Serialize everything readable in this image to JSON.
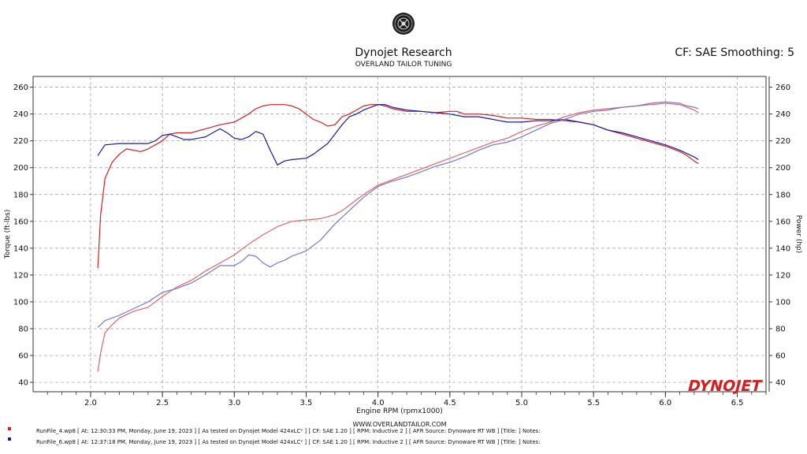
{
  "header": {
    "title": "Dynojet Research",
    "subtitle": "OVERLAND TAILOR TUNING",
    "correction": "CF: SAE Smoothing: 5"
  },
  "chart_data": {
    "type": "line",
    "xlabel": "Engine RPM (rpmx1000)",
    "ylabel_left": "Torque (ft-lbs)",
    "ylabel_right": "Power (hp)",
    "xlim": [
      1.6,
      6.7
    ],
    "ylim": [
      33,
      268
    ],
    "x_ticks": [
      "2.0",
      "2.5",
      "3.0",
      "3.5",
      "4.0",
      "4.5",
      "5.0",
      "5.5",
      "6.0",
      "6.5"
    ],
    "y_ticks": [
      "40",
      "60",
      "80",
      "100",
      "120",
      "140",
      "160",
      "180",
      "200",
      "220",
      "240",
      "260"
    ],
    "grid": true,
    "colors": {
      "run1_torque": "#d42020",
      "run1_power": "#e06666",
      "run2_torque": "#1a1a9c",
      "run2_power": "#7777cc"
    },
    "series": [
      {
        "key": "run1_torque",
        "x": [
          2.05,
          2.07,
          2.1,
          2.15,
          2.2,
          2.25,
          2.3,
          2.35,
          2.4,
          2.5,
          2.55,
          2.6,
          2.7,
          2.8,
          2.9,
          3.0,
          3.05,
          3.1,
          3.15,
          3.2,
          3.25,
          3.3,
          3.35,
          3.4,
          3.45,
          3.5,
          3.55,
          3.6,
          3.65,
          3.7,
          3.75,
          3.8,
          3.85,
          3.9,
          3.95,
          4.0,
          4.05,
          4.1,
          4.2,
          4.3,
          4.4,
          4.5,
          4.55,
          4.6,
          4.7,
          4.8,
          4.9,
          5.0,
          5.1,
          5.2,
          5.3,
          5.4,
          5.5,
          5.6,
          5.7,
          5.8,
          5.9,
          6.0,
          6.1,
          6.15,
          6.2,
          6.23
        ],
        "y": [
          125,
          165,
          192,
          204,
          210,
          214,
          213,
          212,
          214,
          220,
          225,
          226,
          226,
          229,
          232,
          234,
          237,
          240,
          244,
          246,
          247,
          247,
          247,
          246,
          244,
          240,
          236,
          234,
          231,
          232,
          238,
          240,
          243,
          246,
          247,
          247,
          246,
          244,
          242,
          242,
          241,
          242,
          242,
          240,
          240,
          239,
          237,
          237,
          236,
          236,
          235,
          234,
          232,
          228,
          225,
          222,
          219,
          216,
          212,
          209,
          205,
          203
        ]
      },
      {
        "key": "run1_power",
        "x": [
          2.05,
          2.07,
          2.1,
          2.15,
          2.2,
          2.3,
          2.4,
          2.5,
          2.6,
          2.7,
          2.8,
          2.9,
          3.0,
          3.1,
          3.2,
          3.3,
          3.4,
          3.5,
          3.6,
          3.7,
          3.75,
          3.8,
          3.9,
          4.0,
          4.1,
          4.2,
          4.3,
          4.4,
          4.5,
          4.6,
          4.7,
          4.8,
          4.9,
          5.0,
          5.1,
          5.2,
          5.3,
          5.4,
          5.5,
          5.6,
          5.7,
          5.8,
          5.9,
          6.0,
          6.1,
          6.15,
          6.2,
          6.23
        ],
        "y": [
          48,
          62,
          77,
          83,
          88,
          93,
          96,
          104,
          111,
          116,
          123,
          129,
          135,
          143,
          150,
          156,
          160,
          161,
          162,
          165,
          168,
          172,
          180,
          187,
          191,
          195,
          199,
          203,
          207,
          211,
          215,
          219,
          222,
          227,
          231,
          234,
          238,
          241,
          243,
          244,
          245,
          246,
          247,
          248,
          247,
          245,
          243,
          241
        ]
      },
      {
        "key": "run2_torque",
        "x": [
          2.05,
          2.1,
          2.2,
          2.3,
          2.4,
          2.45,
          2.5,
          2.55,
          2.6,
          2.65,
          2.7,
          2.75,
          2.8,
          2.85,
          2.9,
          2.95,
          3.0,
          3.05,
          3.1,
          3.15,
          3.2,
          3.25,
          3.3,
          3.35,
          3.4,
          3.5,
          3.55,
          3.6,
          3.65,
          3.7,
          3.75,
          3.8,
          3.85,
          3.9,
          3.95,
          4.0,
          4.05,
          4.1,
          4.2,
          4.3,
          4.4,
          4.5,
          4.6,
          4.7,
          4.8,
          4.9,
          5.0,
          5.1,
          5.2,
          5.3,
          5.4,
          5.5,
          5.6,
          5.7,
          5.8,
          5.9,
          6.0,
          6.1,
          6.2,
          6.23
        ],
        "y": [
          209,
          217,
          218,
          218,
          218,
          220,
          224,
          225,
          223,
          221,
          221,
          222,
          223,
          226,
          229,
          226,
          222,
          221,
          223,
          227,
          225,
          213,
          202,
          205,
          206,
          207,
          210,
          214,
          218,
          225,
          232,
          238,
          240,
          243,
          245,
          247,
          247,
          245,
          243,
          242,
          241,
          240,
          238,
          238,
          236,
          234,
          234,
          235,
          235,
          236,
          234,
          232,
          228,
          226,
          223,
          220,
          217,
          213,
          208,
          206
        ]
      },
      {
        "key": "run2_power",
        "x": [
          2.05,
          2.1,
          2.2,
          2.3,
          2.4,
          2.5,
          2.6,
          2.7,
          2.8,
          2.9,
          3.0,
          3.05,
          3.1,
          3.15,
          3.2,
          3.25,
          3.3,
          3.35,
          3.4,
          3.5,
          3.6,
          3.7,
          3.8,
          3.9,
          4.0,
          4.1,
          4.2,
          4.3,
          4.4,
          4.5,
          4.6,
          4.7,
          4.8,
          4.9,
          5.0,
          5.1,
          5.2,
          5.3,
          5.4,
          5.5,
          5.6,
          5.7,
          5.8,
          5.9,
          6.0,
          6.1,
          6.15,
          6.2,
          6.23
        ],
        "y": [
          81,
          86,
          90,
          95,
          100,
          107,
          110,
          114,
          120,
          127,
          127,
          130,
          135,
          134,
          129,
          126,
          129,
          131,
          134,
          138,
          146,
          158,
          168,
          178,
          186,
          190,
          193,
          197,
          201,
          204,
          208,
          213,
          217,
          219,
          223,
          228,
          233,
          236,
          240,
          242,
          243,
          245,
          246,
          248,
          249,
          248,
          246,
          245,
          244
        ]
      }
    ]
  },
  "watermark": "WWW.OVERLANDTAILOR.COM",
  "brand_logo": "DYNOJET",
  "logo_icon": "dynojet-badge-icon",
  "runs": [
    {
      "marker_color": "#d42020",
      "text": "RunFile_4.wp8  [  At:  12:30:33 PM, Monday, June 19, 2023  ]  [  As tested on Dynojet Model 424xLC²  ]  [  CF:  SAE 1.20  ]  [  RPM:  Inductive 2  ]  [  AFR Source:  Dynoware RT WB  ]  [Title:  ]   Notes:"
    },
    {
      "marker_color": "#1a1a9c",
      "text": "RunFile_6.wp8  [  At:  12:37:18 PM, Monday, June 19, 2023  ]  [  As tested on Dynojet Model 424xLC²  ]  [  CF:  SAE 1.20  ]  [  RPM:  Inductive 2  ]  [  AFR Source:  Dynoware RT WB  ]  [Title:  ]   Notes:"
    }
  ]
}
